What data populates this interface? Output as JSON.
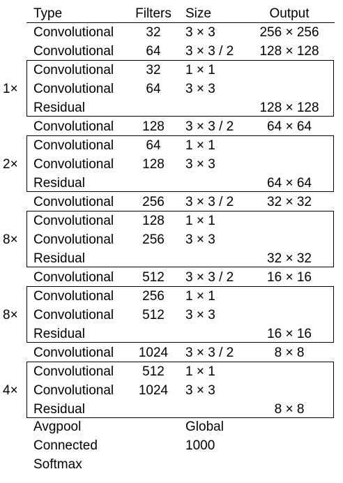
{
  "header": {
    "type": "Type",
    "filters": "Filters",
    "size": "Size",
    "output": "Output"
  },
  "rows": [
    {
      "type": "Convolutional",
      "filters": "32",
      "size": "3 × 3",
      "output": "256 × 256"
    },
    {
      "type": "Convolutional",
      "filters": "64",
      "size": "3 × 3 / 2",
      "output": "128 × 128"
    },
    {
      "type": "Convolutional",
      "filters": "32",
      "size": "1 × 1",
      "output": ""
    },
    {
      "type": "Convolutional",
      "filters": "64",
      "size": "3 × 3",
      "output": ""
    },
    {
      "type": "Residual",
      "filters": "",
      "size": "",
      "output": "128 × 128"
    },
    {
      "type": "Convolutional",
      "filters": "128",
      "size": "3 × 3 / 2",
      "output": "64 × 64"
    },
    {
      "type": "Convolutional",
      "filters": "64",
      "size": "1 × 1",
      "output": ""
    },
    {
      "type": "Convolutional",
      "filters": "128",
      "size": "3 × 3",
      "output": ""
    },
    {
      "type": "Residual",
      "filters": "",
      "size": "",
      "output": "64 × 64"
    },
    {
      "type": "Convolutional",
      "filters": "256",
      "size": "3 × 3 / 2",
      "output": "32 × 32"
    },
    {
      "type": "Convolutional",
      "filters": "128",
      "size": "1 × 1",
      "output": ""
    },
    {
      "type": "Convolutional",
      "filters": "256",
      "size": "3 × 3",
      "output": ""
    },
    {
      "type": "Residual",
      "filters": "",
      "size": "",
      "output": "32 × 32"
    },
    {
      "type": "Convolutional",
      "filters": "512",
      "size": "3 × 3 / 2",
      "output": "16 × 16"
    },
    {
      "type": "Convolutional",
      "filters": "256",
      "size": "1 × 1",
      "output": ""
    },
    {
      "type": "Convolutional",
      "filters": "512",
      "size": "3 × 3",
      "output": ""
    },
    {
      "type": "Residual",
      "filters": "",
      "size": "",
      "output": "16 × 16"
    },
    {
      "type": "Convolutional",
      "filters": "1024",
      "size": "3 × 3 / 2",
      "output": "8 × 8"
    },
    {
      "type": "Convolutional",
      "filters": "512",
      "size": "1 × 1",
      "output": ""
    },
    {
      "type": "Convolutional",
      "filters": "1024",
      "size": "3 × 3",
      "output": ""
    },
    {
      "type": "Residual",
      "filters": "",
      "size": "",
      "output": "8 × 8"
    },
    {
      "type": "Avgpool",
      "filters": "",
      "size": "Global",
      "output": ""
    },
    {
      "type": "Connected",
      "filters": "",
      "size": "1000",
      "output": ""
    },
    {
      "type": "Softmax",
      "filters": "",
      "size": "",
      "output": ""
    }
  ],
  "residual_blocks": [
    {
      "multiplier": "1×"
    },
    {
      "multiplier": "2×"
    },
    {
      "multiplier": "8×"
    },
    {
      "multiplier": "8×"
    },
    {
      "multiplier": "4×"
    }
  ]
}
